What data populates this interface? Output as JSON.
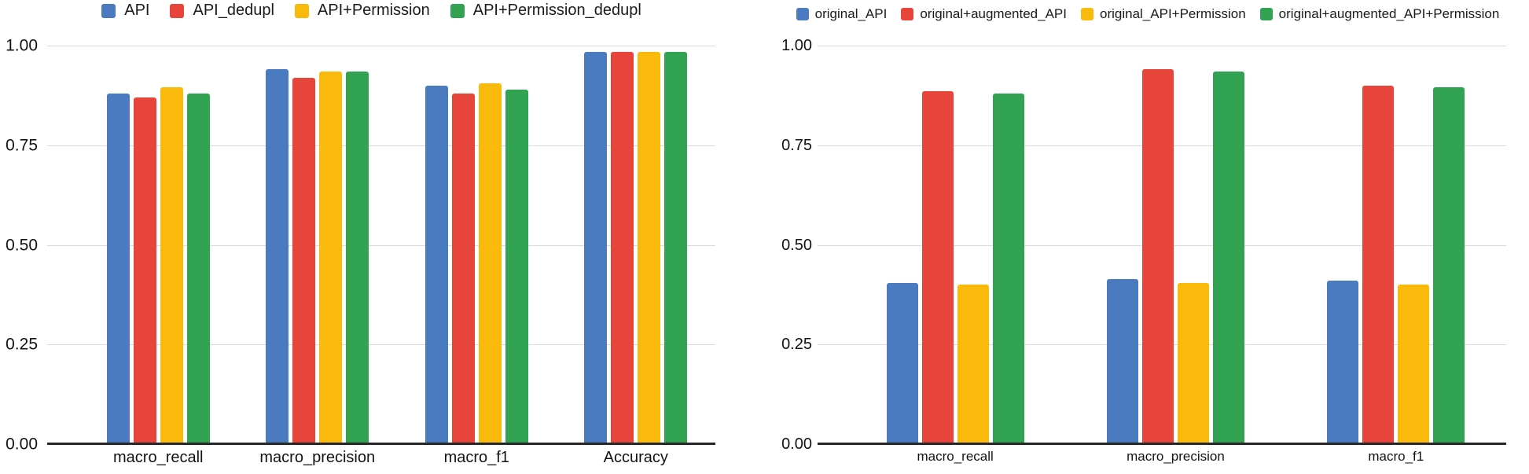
{
  "background": "#ffffff",
  "palette": {
    "blue": "#4a7ac0",
    "red": "#e7453c",
    "yellow": "#f9ba0b",
    "green": "#31a352"
  },
  "chart_data": [
    {
      "type": "bar",
      "title": "",
      "xlabel": "",
      "ylabel": "",
      "legend_position": "top",
      "grid": true,
      "ylim": [
        0,
        1.0
      ],
      "y_ticks": [
        "1.00",
        "0.75",
        "0.50",
        "0.25",
        "0.00"
      ],
      "categories": [
        "macro_recall",
        "macro_precision",
        "macro_f1",
        "Accuracy"
      ],
      "series": [
        {
          "name": "API",
          "color": "#4a7ac0",
          "values": [
            0.88,
            0.94,
            0.9,
            0.985
          ]
        },
        {
          "name": "API_dedupl",
          "color": "#e7453c",
          "values": [
            0.87,
            0.92,
            0.88,
            0.985
          ]
        },
        {
          "name": "API+Permission",
          "color": "#f9ba0b",
          "values": [
            0.895,
            0.935,
            0.905,
            0.985
          ]
        },
        {
          "name": "API+Permission_dedupl",
          "color": "#31a352",
          "values": [
            0.88,
            0.935,
            0.89,
            0.985
          ]
        }
      ]
    },
    {
      "type": "bar",
      "title": "",
      "xlabel": "",
      "ylabel": "",
      "legend_position": "top",
      "grid": true,
      "ylim": [
        0,
        1.0
      ],
      "y_ticks": [
        "1.00",
        "0.75",
        "0.50",
        "0.25",
        "0.00"
      ],
      "categories": [
        "macro_recall",
        "macro_precision",
        "macro_f1"
      ],
      "series": [
        {
          "name": "original_API",
          "color": "#4a7ac0",
          "values": [
            0.405,
            0.415,
            0.41
          ]
        },
        {
          "name": "original+augmented_API",
          "color": "#e7453c",
          "values": [
            0.885,
            0.94,
            0.9
          ]
        },
        {
          "name": "original_API+Permission",
          "color": "#f9ba0b",
          "values": [
            0.4,
            0.405,
            0.4
          ]
        },
        {
          "name": "original+augmented_API+Permission",
          "color": "#31a352",
          "values": [
            0.88,
            0.935,
            0.895
          ]
        }
      ]
    }
  ]
}
